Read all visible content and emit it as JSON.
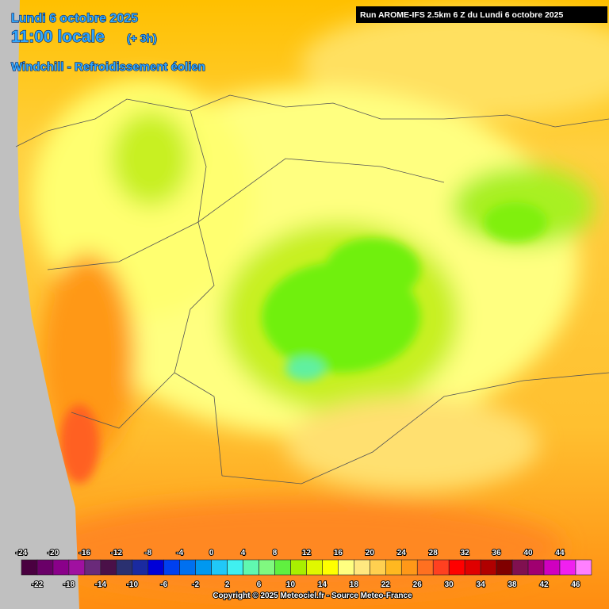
{
  "header": {
    "date": "Lundi 6 octobre 2025",
    "time": "11:00 locale",
    "lead": "(+ 3h)",
    "parameter": "Windchill - Refroidissement éolien",
    "run": "Run AROME-IFS 2.5km 6 Z du Lundi 6 octobre 2025"
  },
  "legend": {
    "values": [
      -24,
      -22,
      -20,
      -18,
      -16,
      -14,
      -12,
      -10,
      -8,
      -6,
      -4,
      -2,
      0,
      2,
      4,
      6,
      8,
      10,
      12,
      14,
      16,
      18,
      20,
      22,
      24,
      26,
      28,
      30,
      32,
      34,
      36,
      38,
      40,
      42,
      44,
      46
    ],
    "colors": [
      "#4a0040",
      "#6a0068",
      "#8a008a",
      "#a010a0",
      "#6a2a7a",
      "#4a1048",
      "#2a3070",
      "#1a2aa0",
      "#0000d8",
      "#0040f0",
      "#0070f0",
      "#0098f0",
      "#20c8f8",
      "#40f0f0",
      "#60f8b0",
      "#80f880",
      "#60f040",
      "#a8f000",
      "#e0f800",
      "#ffff00",
      "#ffff80",
      "#ffe880",
      "#ffd050",
      "#ffb820",
      "#ff9818",
      "#ff7020",
      "#ff4020",
      "#ff0000",
      "#e00000",
      "#b00000",
      "#800000",
      "#801050",
      "#a00070",
      "#d000c0",
      "#f020f0",
      "#ff80ff"
    ]
  },
  "footer": {
    "copyright": "Copyright © 2025 Meteociel.fr - Source Meteo-France"
  }
}
